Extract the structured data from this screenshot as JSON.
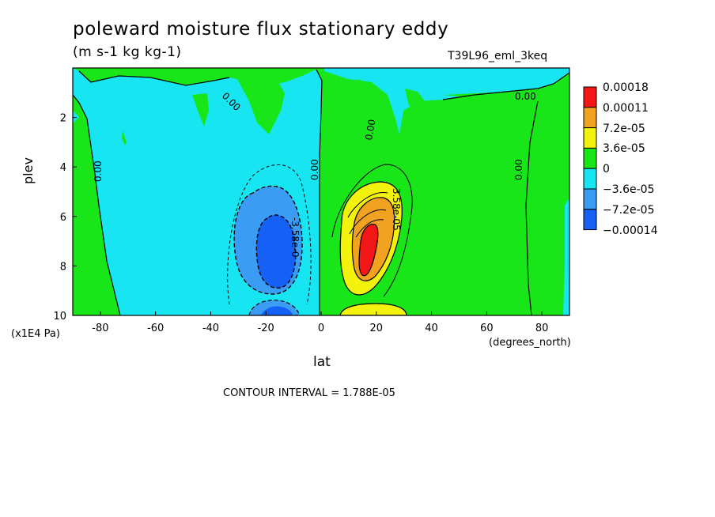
{
  "chart_data": {
    "type": "contour",
    "title": "poleward moisture flux stationary eddy",
    "units": "(m s-1 kg kg-1)",
    "experiment": "T39L96_eml_3keq",
    "xlabel": "lat",
    "x_units": "(degrees_north)",
    "ylabel": "plev",
    "y_units": "(x1E4 Pa)",
    "xlim": [
      -90,
      90
    ],
    "ylim": [
      10,
      0
    ],
    "x_ticks": [
      -80,
      -60,
      -40,
      -20,
      0,
      20,
      40,
      60,
      80
    ],
    "y_ticks": [
      2,
      4,
      6,
      8,
      10
    ],
    "contour_interval": "CONTOUR INTERVAL = 1.788E-05",
    "contour_labels": [
      "0.00",
      "0.00",
      "0.00",
      "0.00",
      "0.00",
      "0.00",
      "3.58e-05",
      "-3.58e-0"
    ],
    "colorbar": [
      {
        "label": "0.00018",
        "color": "#f21616"
      },
      {
        "label": "0.00011",
        "color": "#f0a220"
      },
      {
        "label": "7.2e-05",
        "color": "#f2f20d"
      },
      {
        "label": "3.6e-05",
        "color": "#19e619"
      },
      {
        "label": "0",
        "color": "#17e6f2"
      },
      {
        "label": "−3.6e-05",
        "color": "#3a9cf2"
      },
      {
        "label": "−7.2e-05",
        "color": "#1560f5"
      },
      {
        "label": "−0.00014",
        "color": null
      }
    ],
    "features": [
      {
        "name": "negative-core",
        "lat": -18,
        "plev": 7.3,
        "min_value": -0.00014
      },
      {
        "name": "positive-core",
        "lat": 15,
        "plev": 7.0,
        "max_value": 0.00018
      }
    ]
  }
}
